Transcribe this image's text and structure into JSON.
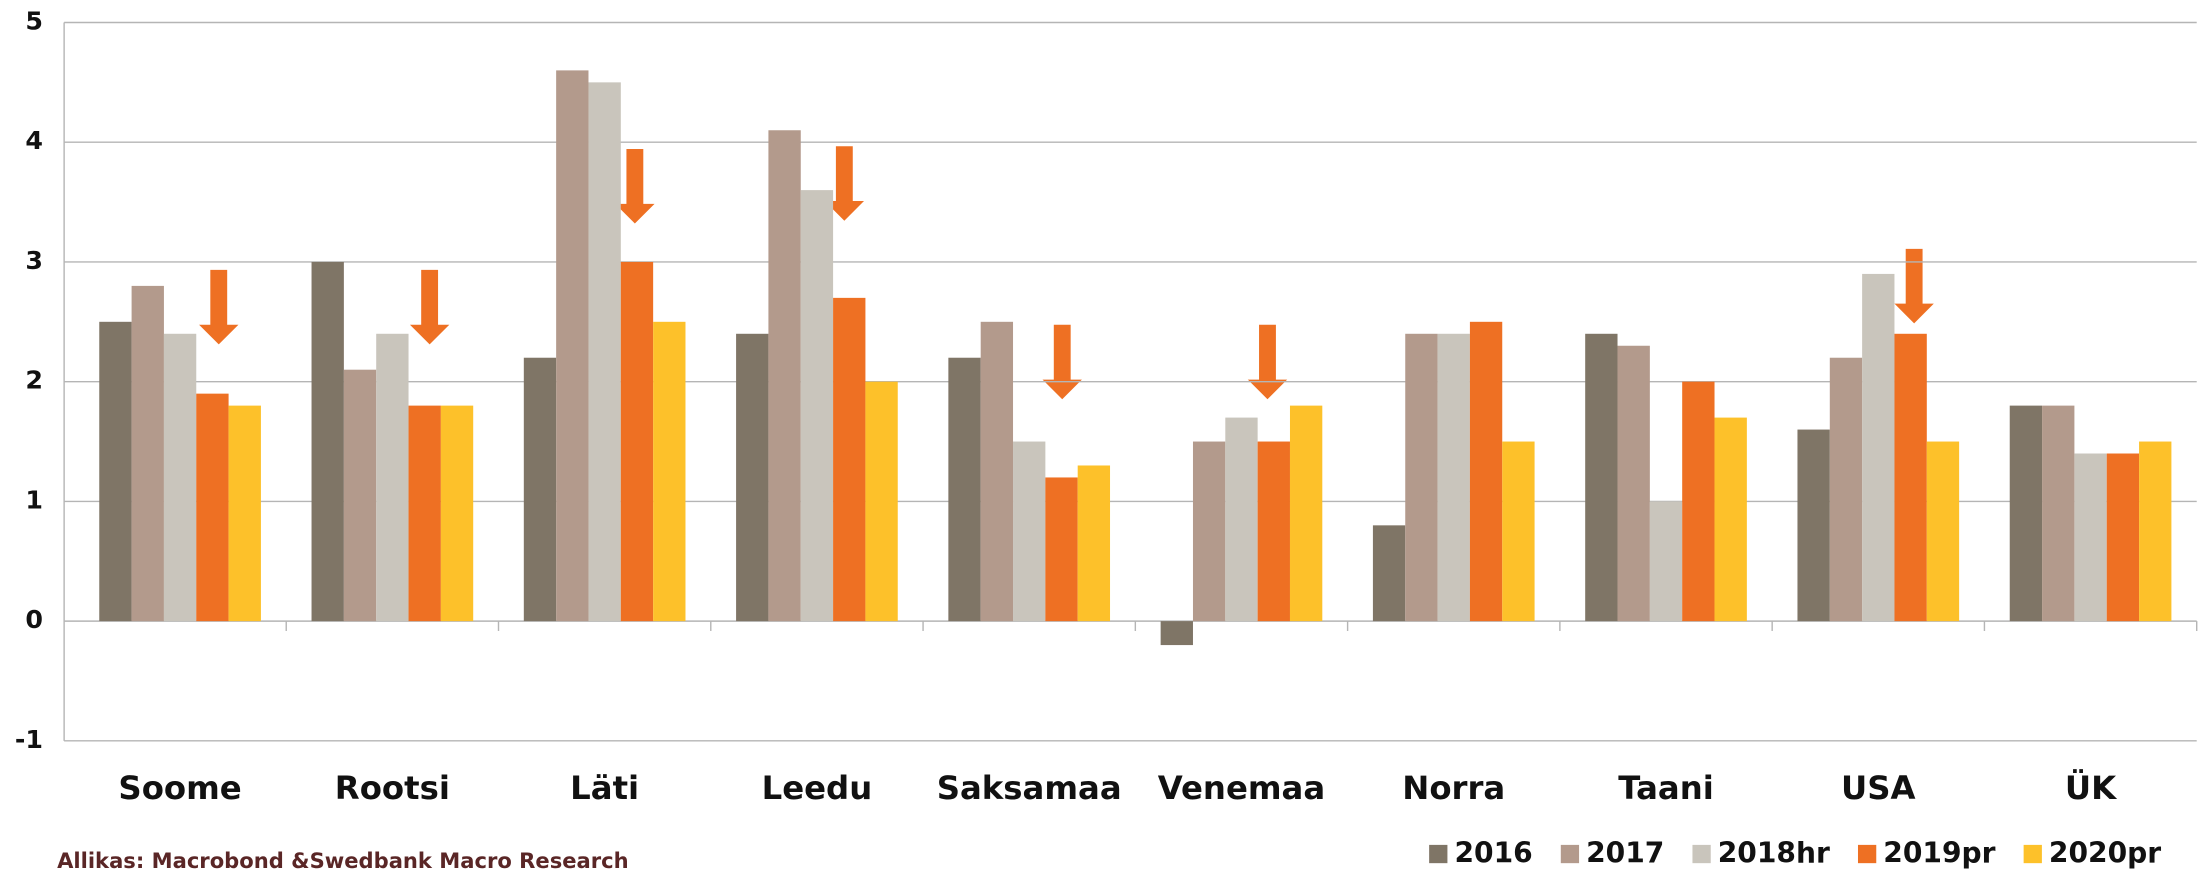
{
  "chart_data": {
    "type": "bar",
    "categories": [
      "Soome",
      "Rootsi",
      "Läti",
      "Leedu",
      "Saksamaa",
      "Venemaa",
      "Norra",
      "Taani",
      "USA",
      "ÜK"
    ],
    "series": [
      {
        "name": "2016",
        "color": "#7f7566",
        "values": [
          2.5,
          3.0,
          2.2,
          2.4,
          2.2,
          -0.2,
          0.8,
          2.4,
          1.6,
          1.8
        ]
      },
      {
        "name": "2017",
        "color": "#b39a8c",
        "values": [
          2.8,
          2.1,
          4.6,
          4.1,
          2.5,
          1.5,
          2.4,
          2.3,
          2.2,
          1.8
        ]
      },
      {
        "name": "2018hr",
        "color": "#c9c5bc",
        "values": [
          2.4,
          2.4,
          4.5,
          3.6,
          1.5,
          1.7,
          2.4,
          1.0,
          2.9,
          1.4
        ]
      },
      {
        "name": "2019pr",
        "color": "#ee7023",
        "values": [
          1.9,
          1.8,
          3.0,
          2.7,
          1.2,
          1.5,
          2.5,
          2.0,
          2.4,
          1.4
        ]
      },
      {
        "name": "2020pr",
        "color": "#fdc12a",
        "values": [
          1.8,
          1.8,
          2.5,
          2.0,
          1.3,
          1.8,
          1.5,
          1.7,
          1.5,
          1.5
        ]
      }
    ],
    "ylim": [
      -1,
      5
    ],
    "yticks": [
      -1,
      0,
      1,
      2,
      3,
      4,
      5
    ],
    "grid": true,
    "source": "Allikas: Macrobond &Swedbank Macro Research",
    "legend": "bottom-right"
  }
}
